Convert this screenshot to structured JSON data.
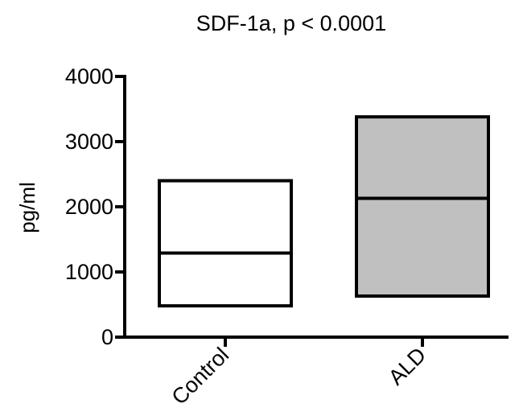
{
  "chart_data": {
    "type": "box",
    "title": "SDF-1a, p < 0.0001",
    "xlabel": "",
    "ylabel": "pg/ml",
    "ylim": [
      0,
      4000
    ],
    "yticks": [
      0,
      1000,
      2000,
      3000,
      4000
    ],
    "ytick_labels": [
      "0",
      "1000",
      "2000",
      "3000",
      "4000"
    ],
    "categories": [
      "Control",
      "ALD"
    ],
    "boxes": [
      {
        "category": "Control",
        "low": 480,
        "median": 1290,
        "high": 2400,
        "fill": "#ffffff"
      },
      {
        "category": "ALD",
        "low": 630,
        "median": 2130,
        "high": 3380,
        "fill": "#c0c0c0"
      }
    ],
    "grid": false,
    "legend": "none"
  }
}
